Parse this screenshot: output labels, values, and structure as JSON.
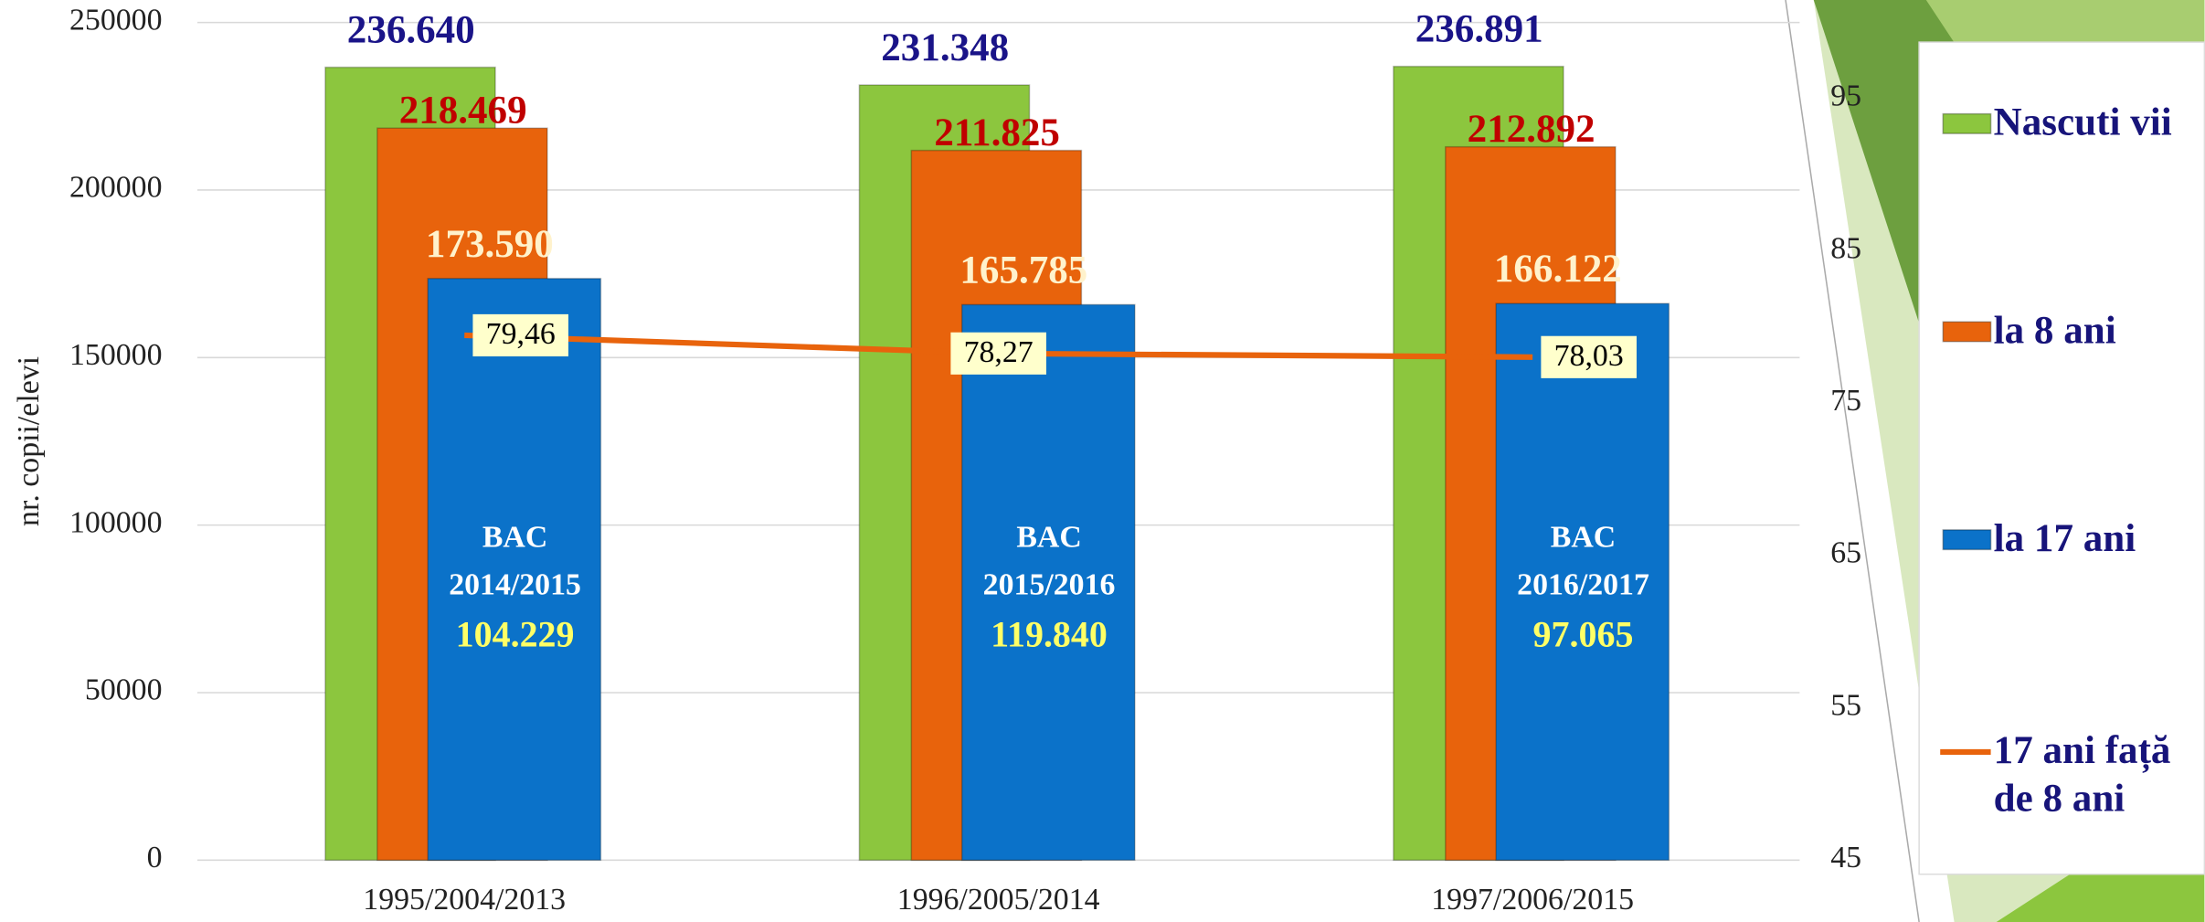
{
  "chart_data": {
    "type": "bar",
    "y_label": "nr. copii/elevi",
    "categories": [
      "1995/2004/2013",
      "1996/2005/2014",
      "1997/2006/2015"
    ],
    "series": [
      {
        "name": "Nascuti vii",
        "color": "#8cc63e",
        "values": [
          236640,
          231348,
          236891
        ],
        "value_labels": [
          "236.640",
          "231.348",
          "236.891"
        ]
      },
      {
        "name": "la 8 ani",
        "color": "#e8630c",
        "values": [
          218469,
          211825,
          212892
        ],
        "value_labels": [
          "218.469",
          "211.825",
          "212.892"
        ]
      },
      {
        "name": "la 17 ani",
        "color": "#0b72c9",
        "values": [
          173590,
          165785,
          166122
        ],
        "value_labels": [
          "173.590",
          "165.785",
          "166.122"
        ]
      },
      {
        "name": "17 ani față de 8 ani",
        "type": "line",
        "axis": "y2",
        "color": "#e8630c",
        "values": [
          79.46,
          78.27,
          78.03
        ],
        "value_labels": [
          "79,46",
          "78,27",
          "78,03"
        ]
      }
    ],
    "annotations": [
      {
        "text": "BAC",
        "session": "2014/2015",
        "value": 104229,
        "label": "104.229"
      },
      {
        "text": "BAC",
        "session": "2015/2016",
        "value": 119840,
        "label": "119.840"
      },
      {
        "text": "BAC",
        "session": "2016/2017",
        "value": 97065,
        "label": "97.065"
      }
    ],
    "ylim": [
      0,
      250000
    ],
    "yticks": [
      0,
      50000,
      100000,
      150000,
      200000,
      250000
    ],
    "y2lim": [
      45,
      100
    ],
    "y2ticks": [
      45,
      55,
      65,
      75,
      85,
      95
    ],
    "grid": true
  }
}
